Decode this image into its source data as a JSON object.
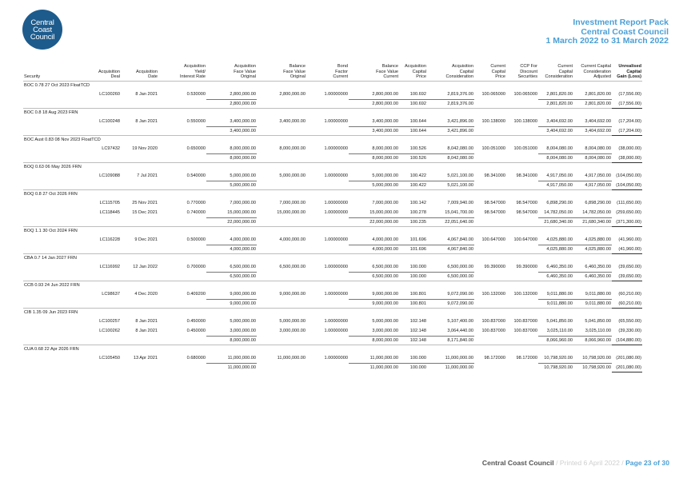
{
  "logo": {
    "lines": [
      "Central",
      "Coast",
      "Council"
    ]
  },
  "report_title": [
    "Investment Report Pack",
    "Central Coast Council",
    "1 March 2022 to 31 March 2022"
  ],
  "headers": [
    [
      "Security"
    ],
    [
      "Acquisition",
      "Deal"
    ],
    [
      "Acquisition",
      "Date"
    ],
    [
      "Acquisition",
      "Yield/",
      "Interest Rate"
    ],
    [
      "Acquisition",
      "Face Value",
      "Original"
    ],
    [
      "Balance",
      "Face Value",
      "Original"
    ],
    [
      "Bond",
      "Factor",
      "Current"
    ],
    [
      "Balance",
      "Face Value",
      "Current"
    ],
    [
      "Acquisition",
      "Capital",
      "Price"
    ],
    [
      "Acquisition",
      "Capital",
      "Consideration"
    ],
    [
      "Current",
      "Capital",
      "Price"
    ],
    [
      "CCP For",
      "Discount",
      "Securities"
    ],
    [
      "Current",
      "Capital",
      "Consideration"
    ],
    [
      "Current Capital",
      "Consideration",
      "Adjusted"
    ],
    [
      "Unrealised",
      "Capital",
      "Gain (Loss)"
    ]
  ],
  "sections": [
    {
      "name": "BOC 0.78 27 Oct 2023 FloatTCD",
      "rows": [
        [
          "LC100260",
          "8 Jan 2021",
          "0.530000",
          "2,800,000.00",
          "2,800,000.00",
          "1.00000000",
          "2,800,000.00",
          "100.692",
          "2,819,376.00",
          "100.065000",
          "100.065000",
          "2,801,820.00",
          "2,801,820.00",
          "(17,556.00)"
        ]
      ],
      "total": [
        "2,800,000.00",
        "2,800,000.00",
        "100.692",
        "2,819,376.00",
        "2,801,820.00",
        "2,801,820.00",
        "(17,556.00)"
      ]
    },
    {
      "name": "BOC 0.8 18 Aug 2023 FRN",
      "rows": [
        [
          "LC100248",
          "8 Jan 2021",
          "0.550000",
          "3,400,000.00",
          "3,400,000.00",
          "1.00000000",
          "3,400,000.00",
          "100.644",
          "3,421,896.00",
          "100.138000",
          "100.138000",
          "3,404,692.00",
          "3,404,692.00",
          "(17,204.00)"
        ]
      ],
      "total": [
        "3,400,000.00",
        "3,400,000.00",
        "100.644",
        "3,421,896.00",
        "3,404,692.00",
        "3,404,692.00",
        "(17,204.00)"
      ]
    },
    {
      "name": "BOC Aust 0.83 08 Nov 2023 FloatTCD",
      "rows": [
        [
          "LC97432",
          "19 Nov 2020",
          "0.650000",
          "8,000,000.00",
          "8,000,000.00",
          "1.00000000",
          "8,000,000.00",
          "100.526",
          "8,042,080.00",
          "100.051000",
          "100.051000",
          "8,004,080.00",
          "8,004,080.00",
          "(38,000.00)"
        ]
      ],
      "total": [
        "8,000,000.00",
        "8,000,000.00",
        "100.526",
        "8,042,080.00",
        "8,004,080.00",
        "8,004,080.00",
        "(38,000.00)"
      ]
    },
    {
      "name": "BOQ 0.63 06 May 2026 FRN",
      "rows": [
        [
          "LC109088",
          "7 Jul 2021",
          "0.540000",
          "5,000,000.00",
          "5,000,000.00",
          "1.00000000",
          "5,000,000.00",
          "100.422",
          "5,021,100.00",
          "98.341000",
          "98.341000",
          "4,917,050.00",
          "4,917,050.00",
          "(104,050.00)"
        ]
      ],
      "total": [
        "5,000,000.00",
        "5,000,000.00",
        "100.422",
        "5,021,100.00",
        "4,917,050.00",
        "4,917,050.00",
        "(104,050.00)"
      ]
    },
    {
      "name": "BOQ 0.8 27 Oct 2026 FRN",
      "rows": [
        [
          "LC115705",
          "25 Nov 2021",
          "0.770000",
          "7,000,000.00",
          "7,000,000.00",
          "1.00000000",
          "7,000,000.00",
          "100.142",
          "7,009,940.00",
          "98.547000",
          "98.547000",
          "6,898,290.00",
          "6,898,290.00",
          "(111,650.00)"
        ],
        [
          "LC118445",
          "15 Dec 2021",
          "0.740000",
          "15,000,000.00",
          "15,000,000.00",
          "1.00000000",
          "15,000,000.00",
          "100.278",
          "15,041,700.00",
          "98.547000",
          "98.547000",
          "14,782,050.00",
          "14,782,050.00",
          "(259,650.00)"
        ]
      ],
      "total": [
        "22,000,000.00",
        "22,000,000.00",
        "100.235",
        "22,051,640.00",
        "21,680,340.00",
        "21,680,340.00",
        "(371,300.00)"
      ]
    },
    {
      "name": "BOQ 1.1 30 Oct 2024 FRN",
      "rows": [
        [
          "LC116228",
          "9 Dec 2021",
          "0.500000",
          "4,000,000.00",
          "4,000,000.00",
          "1.00000000",
          "4,000,000.00",
          "101.696",
          "4,067,840.00",
          "100.647000",
          "100.647000",
          "4,025,880.00",
          "4,025,880.00",
          "(41,960.00)"
        ]
      ],
      "total": [
        "4,000,000.00",
        "4,000,000.00",
        "101.696",
        "4,067,840.00",
        "4,025,880.00",
        "4,025,880.00",
        "(41,960.00)"
      ]
    },
    {
      "name": "CBA 0.7 14 Jan 2027 FRN",
      "rows": [
        [
          "LC116992",
          "12 Jan 2022",
          "0.700000",
          "6,500,000.00",
          "6,500,000.00",
          "1.00000000",
          "6,500,000.00",
          "100.000",
          "6,500,000.00",
          "99.390000",
          "99.390000",
          "6,460,350.00",
          "6,460,350.00",
          "(39,650.00)"
        ]
      ],
      "total": [
        "6,500,000.00",
        "6,500,000.00",
        "100.000",
        "6,500,000.00",
        "6,460,350.00",
        "6,460,350.00",
        "(39,650.00)"
      ]
    },
    {
      "name": "CCB 0.93 24 Jun 2022 FRN",
      "rows": [
        [
          "LC98637",
          "4 Dec 2020",
          "0.409200",
          "9,000,000.00",
          "9,000,000.00",
          "1.00000000",
          "9,000,000.00",
          "100.801",
          "9,072,090.00",
          "100.132000",
          "100.132000",
          "9,011,880.00",
          "9,011,880.00",
          "(60,210.00)"
        ]
      ],
      "total": [
        "9,000,000.00",
        "9,000,000.00",
        "100.801",
        "9,072,090.00",
        "9,011,880.00",
        "9,011,880.00",
        "(60,210.00)"
      ]
    },
    {
      "name": "CIB 1.35 09 Jun 2023 FRN",
      "rows": [
        [
          "LC100257",
          "8 Jan 2021",
          "0.450000",
          "5,000,000.00",
          "5,000,000.00",
          "1.00000000",
          "5,000,000.00",
          "102.148",
          "5,107,400.00",
          "100.837000",
          "100.837000",
          "5,041,850.00",
          "5,041,850.00",
          "(65,550.00)"
        ],
        [
          "LC100262",
          "8 Jan 2021",
          "0.450000",
          "3,000,000.00",
          "3,000,000.00",
          "1.00000000",
          "3,000,000.00",
          "102.148",
          "3,064,440.00",
          "100.837000",
          "100.837000",
          "3,025,110.00",
          "3,025,110.00",
          "(39,330.00)"
        ]
      ],
      "total": [
        "8,000,000.00",
        "8,000,000.00",
        "102.148",
        "8,171,840.00",
        "8,066,960.00",
        "8,066,960.00",
        "(104,880.00)"
      ]
    },
    {
      "name": "CUA 0.68 22 Apr 2026 FRN",
      "rows": [
        [
          "LC105450",
          "13 Apr 2021",
          "0.680000",
          "11,000,000.00",
          "11,000,000.00",
          "1.00000000",
          "11,000,000.00",
          "100.000",
          "11,000,000.00",
          "98.172000",
          "98.172000",
          "10,798,920.00",
          "10,798,920.00",
          "(201,080.00)"
        ]
      ],
      "total": [
        "11,000,000.00",
        "11,000,000.00",
        "100.000",
        "11,000,000.00",
        "10,798,920.00",
        "10,798,920.00",
        "(201,080.00)"
      ]
    }
  ],
  "footer": {
    "org": "Central Coast Council",
    "separator": "/",
    "printed": "Printed 6 April 2022",
    "page": "Page 23 of 30"
  }
}
